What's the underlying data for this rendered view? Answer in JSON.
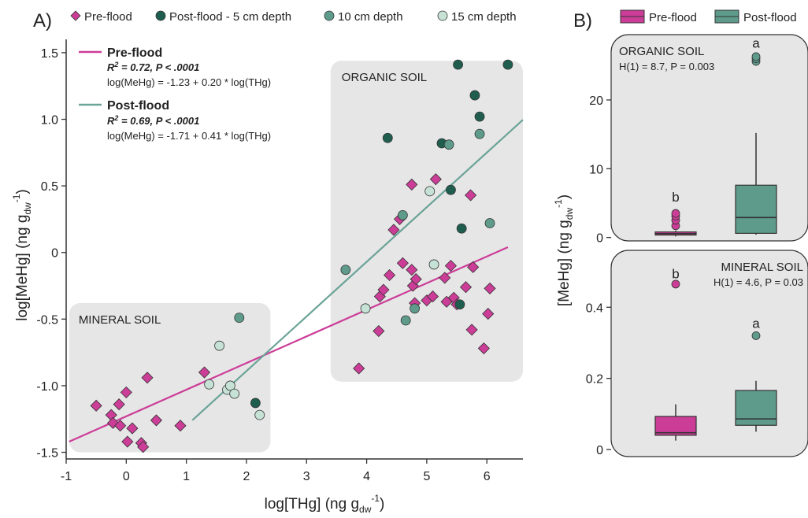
{
  "colors": {
    "pre_flood": "#cc3d98",
    "post_5cm": "#1f5e4e",
    "post_10cm": "#5e9b8b",
    "post_15cm": "#c6e2d6",
    "post_line": "#6aa397",
    "region_fill": "#e6e6e6",
    "point_edge": "#333333"
  },
  "chart_data": [
    {
      "type": "scatter",
      "panel_label": "A)",
      "xlabel": "log[THg] (ng g",
      "xlabel_sub": "dw",
      "xlabel_sup": "-1",
      "xlabel_close": ")",
      "ylabel": "log[MeHg] (ng g",
      "ylabel_sub": "dw",
      "ylabel_sup": "-1",
      "ylabel_close": ")",
      "xlim": [
        -1,
        6.6
      ],
      "ylim": [
        -1.55,
        1.6
      ],
      "x_ticks": [
        -1,
        0,
        1,
        2,
        3,
        4,
        5,
        6
      ],
      "y_ticks": [
        -1.5,
        -1.0,
        -0.5,
        0,
        0.5,
        1.0,
        1.5
      ],
      "x_tick_labels": [
        "-1",
        "0",
        "1",
        "2",
        "3",
        "4",
        "5",
        "6"
      ],
      "y_tick_labels": [
        "-1.5",
        "-1.0",
        "-0.5",
        "0",
        "0.5",
        "1.0",
        "1.5"
      ],
      "legend": [
        {
          "label": "Pre-flood",
          "marker": "diamond",
          "color": "#cc3d98"
        },
        {
          "label": "Post-flood - 5 cm depth",
          "marker": "circle",
          "color": "#1f5e4e"
        },
        {
          "label": "10 cm depth",
          "marker": "circle",
          "color": "#5e9b8b"
        },
        {
          "label": "15 cm depth",
          "marker": "circle",
          "color": "#c6e2d6"
        }
      ],
      "regions": [
        {
          "label": "MINERAL SOIL",
          "x": [
            -0.95,
            2.4
          ],
          "y": [
            -1.5,
            -0.38
          ]
        },
        {
          "label": "ORGANIC SOIL",
          "x": [
            3.4,
            6.6
          ],
          "y": [
            -0.97,
            1.44
          ]
        }
      ],
      "regression_lines": [
        {
          "name": "Pre-flood",
          "r2_label": "R",
          "r2_sup": "2",
          "r2_value": " = 0.72, ",
          "p_label": "P",
          "p_value": " < .0001",
          "equation": "log(MeHg) = -1.23 + 0.20 * log(THg)",
          "intercept": -1.23,
          "slope": 0.2,
          "x_range": [
            -0.95,
            6.35
          ],
          "color": "#cc3d98"
        },
        {
          "name": "Post-flood",
          "r2_label": "R",
          "r2_sup": "2",
          "r2_value": " = 0.69, ",
          "p_label": "P",
          "p_value": " < .0001",
          "equation": "log(MeHg) = -1.71 + 0.41 * log(THg)",
          "intercept": -1.71,
          "slope": 0.41,
          "x_range": [
            1.1,
            6.6
          ],
          "color": "#6aa397"
        }
      ],
      "series": [
        {
          "name": "Pre-flood",
          "marker": "diamond",
          "color": "#cc3d98",
          "points": [
            [
              -0.5,
              -1.15
            ],
            [
              -0.25,
              -1.22
            ],
            [
              -0.22,
              -1.28
            ],
            [
              -0.12,
              -1.14
            ],
            [
              -0.1,
              -1.3
            ],
            [
              0.0,
              -1.05
            ],
            [
              0.02,
              -1.42
            ],
            [
              0.1,
              -1.32
            ],
            [
              0.25,
              -1.43
            ],
            [
              0.28,
              -1.46
            ],
            [
              0.35,
              -0.94
            ],
            [
              0.5,
              -1.26
            ],
            [
              0.9,
              -1.3
            ],
            [
              1.3,
              -0.9
            ],
            [
              3.87,
              -0.87
            ],
            [
              4.2,
              -0.59
            ],
            [
              4.22,
              -0.33
            ],
            [
              4.28,
              -0.28
            ],
            [
              4.38,
              -0.17
            ],
            [
              4.45,
              0.17
            ],
            [
              4.55,
              0.25
            ],
            [
              4.6,
              -0.08
            ],
            [
              4.75,
              -0.13
            ],
            [
              4.75,
              0.51
            ],
            [
              4.77,
              -0.25
            ],
            [
              4.8,
              -0.38
            ],
            [
              4.82,
              -0.2
            ],
            [
              5.0,
              -0.36
            ],
            [
              5.1,
              -0.33
            ],
            [
              5.15,
              0.55
            ],
            [
              5.3,
              -0.19
            ],
            [
              5.33,
              -0.37
            ],
            [
              5.4,
              -0.1
            ],
            [
              5.45,
              -0.34
            ],
            [
              5.5,
              -0.39
            ],
            [
              5.65,
              -0.26
            ],
            [
              5.73,
              0.43
            ],
            [
              5.75,
              -0.58
            ],
            [
              5.77,
              -0.11
            ],
            [
              5.95,
              -0.72
            ],
            [
              6.02,
              -0.46
            ],
            [
              6.05,
              -0.27
            ]
          ]
        },
        {
          "name": "Post-flood - 5 cm depth",
          "marker": "circle",
          "color": "#1f5e4e",
          "points": [
            [
              2.15,
              -1.13
            ],
            [
              4.35,
              0.86
            ],
            [
              5.25,
              0.82
            ],
            [
              5.4,
              0.47
            ],
            [
              5.52,
              1.41
            ],
            [
              5.55,
              -0.39
            ],
            [
              5.58,
              0.18
            ],
            [
              5.8,
              1.18
            ],
            [
              5.88,
              1.02
            ],
            [
              6.35,
              1.41
            ]
          ]
        },
        {
          "name": "10 cm depth",
          "marker": "circle",
          "color": "#5e9b8b",
          "points": [
            [
              1.88,
              -0.49
            ],
            [
              3.65,
              -0.13
            ],
            [
              4.6,
              0.28
            ],
            [
              4.65,
              -0.51
            ],
            [
              4.8,
              -0.42
            ],
            [
              5.37,
              0.81
            ],
            [
              5.88,
              0.89
            ],
            [
              6.05,
              0.22
            ]
          ]
        },
        {
          "name": "15 cm depth",
          "marker": "circle",
          "color": "#c6e2d6",
          "points": [
            [
              1.38,
              -0.99
            ],
            [
              1.55,
              -0.7
            ],
            [
              1.68,
              -1.03
            ],
            [
              1.73,
              -1.0
            ],
            [
              1.8,
              -1.06
            ],
            [
              2.22,
              -1.22
            ],
            [
              3.98,
              -0.42
            ],
            [
              5.05,
              0.46
            ],
            [
              5.12,
              -0.09
            ]
          ]
        }
      ]
    },
    {
      "type": "box",
      "panel_label": "B)",
      "ylabel": "[MeHg] (ng g",
      "ylabel_sub": "dw",
      "ylabel_sup": "-1",
      "ylabel_close": ")",
      "legend": [
        {
          "label": "Pre-flood",
          "color": "#cc3d98"
        },
        {
          "label": "Post-flood",
          "color": "#5e9b8b"
        }
      ],
      "panels": [
        {
          "title": "ORGANIC SOIL",
          "stat": "H(1) = 8.7, P = 0.003",
          "ylim": [
            -0.5,
            29.5
          ],
          "y_ticks": [
            0,
            10,
            20
          ],
          "y_tick_labels": [
            "0",
            "10",
            "20"
          ],
          "boxes": [
            {
              "group": "Pre-flood",
              "color": "#cc3d98",
              "whisker_low": 0.15,
              "q1": 0.35,
              "median": 0.55,
              "q3": 0.8,
              "whisker_high": 1.0,
              "outliers": [
                1.7,
                2.5,
                3.1,
                3.5
              ],
              "letter": "b",
              "letter_y": 5.9
            },
            {
              "group": "Post-flood",
              "color": "#5e9b8b",
              "whisker_low": 0.4,
              "q1": 0.6,
              "median": 2.9,
              "q3": 7.6,
              "whisker_high": 15.2,
              "outliers": [
                25.6,
                26.0,
                26.3
              ],
              "letter": "a",
              "letter_y": 28.3
            }
          ]
        },
        {
          "title": "MINERAL SOIL",
          "stat": "H(1) = 4.6, P = 0.03",
          "ylim": [
            -0.02,
            0.56
          ],
          "y_ticks": [
            0,
            0.2,
            0.4
          ],
          "y_tick_labels": [
            "0",
            "0.2",
            "0.4"
          ],
          "boxes": [
            {
              "group": "Pre-flood",
              "color": "#cc3d98",
              "whisker_low": 0.025,
              "q1": 0.04,
              "median": 0.047,
              "q3": 0.093,
              "whisker_high": 0.127,
              "outliers": [
                0.465
              ],
              "letter": "b",
              "letter_y": 0.495
            },
            {
              "group": "Post-flood",
              "color": "#5e9b8b",
              "whisker_low": 0.05,
              "q1": 0.068,
              "median": 0.086,
              "q3": 0.166,
              "whisker_high": 0.193,
              "outliers": [
                0.32
              ],
              "letter": "a",
              "letter_y": 0.355
            }
          ]
        }
      ]
    }
  ]
}
